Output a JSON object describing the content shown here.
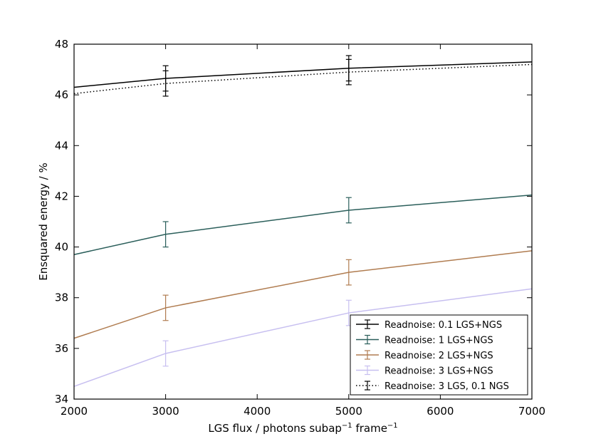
{
  "chart_data": {
    "type": "line",
    "title": "",
    "xlabel": "LGS flux / photons subap",
    "xlabel_sup1": "−1",
    "xlabel_mid": " frame",
    "xlabel_sup2": "−1",
    "ylabel": "Ensquared energy / %",
    "xlim": [
      2000,
      7000
    ],
    "ylim": [
      34,
      48
    ],
    "xticks": [
      "2000",
      "3000",
      "4000",
      "5000",
      "6000",
      "7000"
    ],
    "yticks": [
      "34",
      "36",
      "38",
      "40",
      "42",
      "44",
      "46",
      "48"
    ],
    "x": [
      2000,
      3000,
      5000,
      7000
    ],
    "grid": false,
    "legend_position": "lower-right",
    "series": [
      {
        "name": "Readnoise: 0.1 LGS+NGS",
        "color": "#000000",
        "style": "solid",
        "values": [
          46.3,
          46.65,
          47.05,
          47.3
        ],
        "errors": [
          null,
          0.5,
          0.5,
          null
        ]
      },
      {
        "name": "Readnoise: 1 LGS+NGS",
        "color": "#2a5e5a",
        "style": "solid",
        "values": [
          39.7,
          40.5,
          41.45,
          42.05
        ],
        "errors": [
          null,
          0.5,
          0.5,
          null
        ]
      },
      {
        "name": "Readnoise: 2 LGS+NGS",
        "color": "#b07c50",
        "style": "solid",
        "values": [
          36.4,
          37.6,
          39.0,
          39.85
        ],
        "errors": [
          null,
          0.5,
          0.5,
          null
        ]
      },
      {
        "name": "Readnoise: 3 LGS+NGS",
        "color": "#c7bff0",
        "style": "solid",
        "values": [
          34.5,
          35.8,
          37.4,
          38.35
        ],
        "errors": [
          null,
          0.5,
          0.5,
          null
        ]
      },
      {
        "name": "Readnoise: 3 LGS, 0.1 NGS",
        "color": "#000000",
        "style": "dotted",
        "values": [
          46.05,
          46.45,
          46.9,
          47.2
        ],
        "errors": [
          null,
          0.5,
          0.5,
          null
        ]
      }
    ]
  }
}
